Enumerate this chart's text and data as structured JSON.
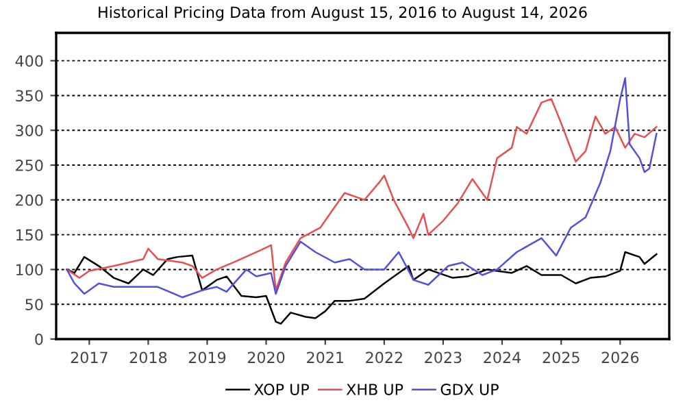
{
  "chart_data": {
    "type": "line",
    "title": "Historical Pricing Data from August 15, 2016 to August 14, 2026",
    "xlim": [
      "2016-06-10",
      "2026-11-01"
    ],
    "ylim": [
      0,
      440
    ],
    "xticks": [
      {
        "value": "2017-01-01",
        "label": "2017"
      },
      {
        "value": "2018-01-01",
        "label": "2018"
      },
      {
        "value": "2019-01-01",
        "label": "2019"
      },
      {
        "value": "2020-01-01",
        "label": "2020"
      },
      {
        "value": "2021-01-01",
        "label": "2021"
      },
      {
        "value": "2022-01-01",
        "label": "2022"
      },
      {
        "value": "2023-01-01",
        "label": "2023"
      },
      {
        "value": "2024-01-01",
        "label": "2024"
      },
      {
        "value": "2025-01-01",
        "label": "2025"
      },
      {
        "value": "2026-01-01",
        "label": "2026"
      }
    ],
    "yticks": [
      0,
      50,
      100,
      150,
      200,
      250,
      300,
      350,
      400
    ],
    "grid": "y",
    "legend": "bottom",
    "line_style": "solid",
    "marker": "none",
    "series": [
      {
        "name": "XOP UP",
        "color": "#000000",
        "x": [
          "2016-08-15",
          "2016-10",
          "2016-12",
          "2017-03",
          "2017-06",
          "2017-09",
          "2017-12",
          "2018-02",
          "2018-05",
          "2018-07",
          "2018-10",
          "2018-12",
          "2019-03",
          "2019-05",
          "2019-08",
          "2019-11",
          "2020-01",
          "2020-03",
          "2020-04",
          "2020-06",
          "2020-09",
          "2020-11",
          "2021-01",
          "2021-03",
          "2021-06",
          "2021-09",
          "2022-01",
          "2022-06",
          "2022-07",
          "2022-10",
          "2023-03",
          "2023-06",
          "2023-10",
          "2024-03",
          "2024-06",
          "2024-09",
          "2025-01",
          "2025-04",
          "2025-07",
          "2025-10",
          "2026-01",
          "2026-02",
          "2026-05",
          "2026-06",
          "2026-08-14"
        ],
        "values": [
          100,
          95,
          118,
          105,
          88,
          80,
          100,
          92,
          115,
          118,
          120,
          70,
          85,
          90,
          62,
          60,
          62,
          25,
          22,
          38,
          32,
          30,
          40,
          55,
          55,
          58,
          80,
          105,
          85,
          100,
          88,
          90,
          100,
          95,
          105,
          92,
          92,
          80,
          88,
          90,
          98,
          125,
          118,
          108,
          122
        ]
      },
      {
        "name": "XHB UP",
        "color": "#e85050",
        "x": [
          "2016-08-15",
          "2016-11",
          "2017-01",
          "2017-06",
          "2017-12",
          "2018-01",
          "2018-03",
          "2018-08",
          "2018-10",
          "2018-12",
          "2019-03",
          "2019-07",
          "2019-12",
          "2020-02",
          "2020-03",
          "2020-05",
          "2020-08",
          "2020-12",
          "2021-03",
          "2021-05",
          "2021-09",
          "2021-12",
          "2022-01",
          "2022-03",
          "2022-06",
          "2022-07",
          "2022-09",
          "2022-10",
          "2023-01",
          "2023-04",
          "2023-07",
          "2023-10",
          "2023-12",
          "2024-03",
          "2024-04",
          "2024-06",
          "2024-09",
          "2024-11",
          "2025-01",
          "2025-04",
          "2025-06",
          "2025-08",
          "2025-10",
          "2025-12",
          "2026-02",
          "2026-04",
          "2026-06",
          "2026-08-14"
        ],
        "values": [
          100,
          88,
          98,
          105,
          115,
          130,
          115,
          110,
          105,
          88,
          100,
          112,
          128,
          135,
          70,
          110,
          145,
          160,
          190,
          210,
          200,
          225,
          235,
          200,
          160,
          145,
          180,
          150,
          170,
          195,
          230,
          200,
          260,
          275,
          305,
          295,
          340,
          345,
          310,
          255,
          270,
          320,
          295,
          305,
          275,
          295,
          290,
          305
        ]
      },
      {
        "name": "GDX UP",
        "color": "#5050e0",
        "x": [
          "2016-08-15",
          "2016-10",
          "2016-12",
          "2017-03",
          "2017-06",
          "2017-12",
          "2018-03",
          "2018-08",
          "2018-12",
          "2019-03",
          "2019-05",
          "2019-09",
          "2019-11",
          "2020-02",
          "2020-03",
          "2020-05",
          "2020-08",
          "2020-11",
          "2021-03",
          "2021-06",
          "2021-09",
          "2022-01",
          "2022-04",
          "2022-07",
          "2022-10",
          "2023-02",
          "2023-05",
          "2023-09",
          "2023-12",
          "2024-04",
          "2024-09",
          "2024-12",
          "2025-03",
          "2025-06",
          "2025-09",
          "2025-11",
          "2026-01",
          "2026-02",
          "2026-03",
          "2026-05",
          "2026-06",
          "2026-07",
          "2026-08-14"
        ],
        "values": [
          100,
          80,
          65,
          80,
          75,
          75,
          75,
          60,
          70,
          75,
          68,
          100,
          90,
          95,
          65,
          105,
          140,
          125,
          110,
          115,
          100,
          100,
          125,
          85,
          78,
          105,
          110,
          92,
          100,
          125,
          145,
          120,
          160,
          175,
          225,
          270,
          345,
          375,
          280,
          260,
          240,
          245,
          295
        ]
      }
    ]
  }
}
